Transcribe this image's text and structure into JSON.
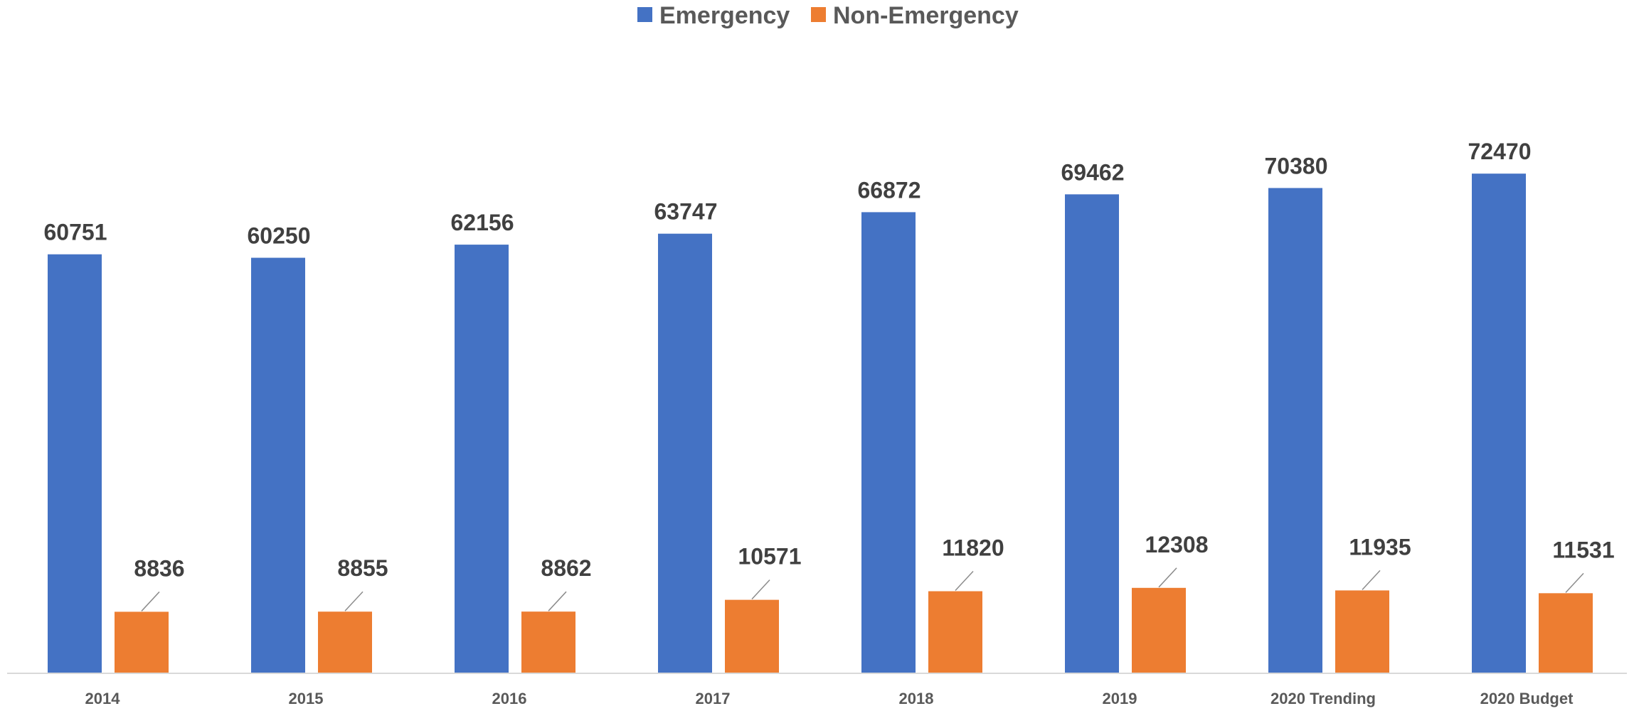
{
  "chart_data": {
    "type": "bar",
    "categories": [
      "2014",
      "2015",
      "2016",
      "2017",
      "2018",
      "2019",
      "2020 Trending",
      "2020 Budget"
    ],
    "series": [
      {
        "name": "Emergency",
        "color": "#4472C4",
        "values": [
          60751,
          60250,
          62156,
          63747,
          66872,
          69462,
          70380,
          72470
        ]
      },
      {
        "name": "Non-Emergency",
        "color": "#ED7D31",
        "values": [
          8836,
          8855,
          8862,
          10571,
          11820,
          12308,
          11935,
          11531
        ]
      }
    ],
    "ylim": [
      0,
      80000
    ],
    "grid": false,
    "legend_position": "top-center",
    "data_labels": true
  }
}
